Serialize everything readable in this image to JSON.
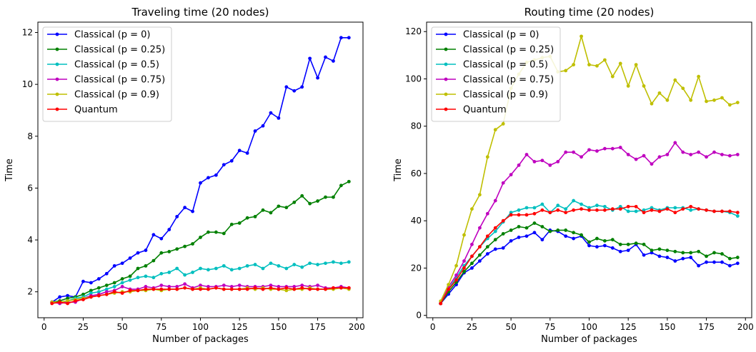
{
  "chart_data": [
    {
      "type": "line",
      "title": "Traveling time (20 nodes)",
      "xlabel": "Number of packages",
      "ylabel": "Time",
      "xlim": [
        -4,
        204
      ],
      "ylim": [
        1.0,
        12.4
      ],
      "xticks": [
        0,
        25,
        50,
        75,
        100,
        125,
        150,
        175,
        200
      ],
      "yticks": [
        2,
        4,
        6,
        8,
        10,
        12
      ],
      "grid": false,
      "legend_position": "top-left",
      "x": [
        5,
        10,
        15,
        20,
        25,
        30,
        35,
        40,
        45,
        50,
        55,
        60,
        65,
        70,
        75,
        80,
        85,
        90,
        95,
        100,
        105,
        110,
        115,
        120,
        125,
        130,
        135,
        140,
        145,
        150,
        155,
        160,
        165,
        170,
        175,
        180,
        185,
        190,
        195
      ],
      "series": [
        {
          "name": "Classical (p = 0)",
          "color": "#0000ff",
          "values": [
            1.6,
            1.8,
            1.85,
            1.8,
            2.4,
            2.35,
            2.5,
            2.7,
            3.0,
            3.1,
            3.3,
            3.5,
            3.6,
            4.2,
            4.05,
            4.4,
            4.9,
            5.25,
            5.1,
            6.2,
            6.4,
            6.5,
            6.9,
            7.05,
            7.45,
            7.35,
            8.2,
            8.4,
            8.9,
            8.7,
            9.9,
            9.75,
            9.9,
            11.0,
            10.25,
            11.05,
            10.9,
            11.8,
            11.8
          ]
        },
        {
          "name": "Classical (p = 0.25)",
          "color": "#008000",
          "values": [
            1.6,
            1.65,
            1.75,
            1.8,
            1.9,
            2.05,
            2.15,
            2.25,
            2.35,
            2.5,
            2.6,
            2.9,
            3.0,
            3.2,
            3.5,
            3.55,
            3.65,
            3.75,
            3.85,
            4.1,
            4.3,
            4.3,
            4.25,
            4.6,
            4.65,
            4.85,
            4.9,
            5.15,
            5.05,
            5.3,
            5.25,
            5.45,
            5.7,
            5.4,
            5.5,
            5.65,
            5.65,
            6.1,
            6.25
          ]
        },
        {
          "name": "Classical (p = 0.5)",
          "color": "#00bfbf",
          "values": [
            1.6,
            1.6,
            1.65,
            1.75,
            1.8,
            1.95,
            2.0,
            2.1,
            2.2,
            2.35,
            2.45,
            2.55,
            2.6,
            2.55,
            2.7,
            2.75,
            2.9,
            2.65,
            2.75,
            2.9,
            2.85,
            2.9,
            3.0,
            2.85,
            2.9,
            3.0,
            3.05,
            2.9,
            3.1,
            3.0,
            2.9,
            3.05,
            2.95,
            3.1,
            3.05,
            3.1,
            3.15,
            3.1,
            3.15
          ]
        },
        {
          "name": "Classical (p = 0.75)",
          "color": "#bf00bf",
          "values": [
            1.6,
            1.55,
            1.6,
            1.6,
            1.75,
            1.85,
            1.9,
            2.0,
            2.05,
            2.2,
            2.1,
            2.1,
            2.2,
            2.15,
            2.25,
            2.2,
            2.2,
            2.3,
            2.15,
            2.25,
            2.2,
            2.2,
            2.25,
            2.2,
            2.25,
            2.2,
            2.2,
            2.2,
            2.25,
            2.2,
            2.2,
            2.2,
            2.25,
            2.2,
            2.25,
            2.15,
            2.15,
            2.2,
            2.15
          ]
        },
        {
          "name": "Classical (p = 0.9)",
          "color": "#bfbf00",
          "values": [
            1.6,
            1.6,
            1.65,
            1.7,
            1.75,
            1.8,
            1.85,
            1.9,
            1.95,
            2.0,
            2.0,
            2.05,
            2.05,
            2.1,
            2.05,
            2.1,
            2.1,
            2.15,
            2.1,
            2.15,
            2.1,
            2.15,
            2.1,
            2.1,
            2.1,
            2.15,
            2.1,
            2.15,
            2.1,
            2.1,
            2.05,
            2.1,
            2.1,
            2.15,
            2.1,
            2.1,
            2.1,
            2.15,
            2.1
          ]
        },
        {
          "name": "Quantum",
          "color": "#ff0000",
          "values": [
            1.55,
            1.6,
            1.55,
            1.65,
            1.7,
            1.8,
            1.85,
            1.9,
            2.0,
            1.95,
            2.05,
            2.05,
            2.1,
            2.1,
            2.1,
            2.1,
            2.1,
            2.15,
            2.1,
            2.1,
            2.1,
            2.15,
            2.1,
            2.1,
            2.1,
            2.1,
            2.15,
            2.1,
            2.15,
            2.1,
            2.15,
            2.1,
            2.15,
            2.1,
            2.1,
            2.1,
            2.15,
            2.15,
            2.15
          ]
        }
      ]
    },
    {
      "type": "line",
      "title": "Routing time (20 nodes)",
      "xlabel": "Number of packages",
      "ylabel": "Time",
      "xlim": [
        -4,
        204
      ],
      "ylim": [
        -1,
        124
      ],
      "xticks": [
        0,
        25,
        50,
        75,
        100,
        125,
        150,
        175,
        200
      ],
      "yticks": [
        0,
        20,
        40,
        60,
        80,
        100,
        120
      ],
      "grid": false,
      "legend_position": "top-left",
      "x": [
        5,
        10,
        15,
        20,
        25,
        30,
        35,
        40,
        45,
        50,
        55,
        60,
        65,
        70,
        75,
        80,
        85,
        90,
        95,
        100,
        105,
        110,
        115,
        120,
        125,
        130,
        135,
        140,
        145,
        150,
        155,
        160,
        165,
        170,
        175,
        180,
        185,
        190,
        195
      ],
      "series": [
        {
          "name": "Classical (p = 0)",
          "color": "#0000ff",
          "values": [
            5,
            9,
            13,
            18,
            20,
            23,
            26,
            28,
            28.5,
            31.5,
            33,
            33.5,
            35,
            32,
            36,
            35.5,
            33.5,
            32.5,
            33.5,
            29.5,
            29,
            29.5,
            28.5,
            27,
            27.5,
            30,
            25.5,
            26.5,
            25,
            24.5,
            23,
            24,
            24.5,
            21,
            22.5,
            22.5,
            22.5,
            21,
            22
          ]
        },
        {
          "name": "Classical (p = 0.25)",
          "color": "#008000",
          "values": [
            5,
            10,
            14,
            18.5,
            22,
            25.5,
            29,
            32,
            34.5,
            36,
            37.5,
            37,
            39,
            37.5,
            35.5,
            36,
            36,
            35,
            34,
            31,
            32.5,
            31.5,
            32,
            30,
            30,
            30.5,
            30,
            27.5,
            28,
            27.5,
            27,
            26.5,
            26.5,
            27,
            25,
            26.5,
            26,
            24,
            24.5
          ]
        },
        {
          "name": "Classical (p = 0.5)",
          "color": "#00bfbf",
          "values": [
            5,
            11,
            16,
            21,
            25,
            29,
            32.5,
            35.5,
            39.5,
            43.5,
            44.5,
            45.5,
            45.5,
            47,
            43.5,
            46.5,
            45,
            48.5,
            47,
            45.5,
            46.5,
            46,
            44.5,
            46,
            44,
            44,
            44.5,
            45.5,
            44.5,
            45.5,
            45.5,
            45.5,
            44.5,
            45,
            44.5,
            44,
            44,
            43.5,
            42
          ]
        },
        {
          "name": "Classical (p = 0.75)",
          "color": "#bf00bf",
          "values": [
            5,
            12,
            17,
            23,
            30,
            37,
            43,
            48.5,
            56,
            59.5,
            63.5,
            68,
            65,
            65.5,
            63.5,
            65,
            69,
            69,
            67,
            70,
            69.5,
            70.5,
            70.5,
            71,
            68,
            66,
            67.5,
            64,
            67,
            68,
            73,
            69,
            68,
            69,
            67,
            69,
            68,
            67.5,
            68
          ]
        },
        {
          "name": "Classical (p = 0.9)",
          "color": "#bfbf00",
          "values": [
            6,
            13,
            21,
            34,
            45,
            51,
            67,
            78.5,
            81,
            96,
            102,
            107,
            108,
            109,
            109.5,
            103,
            103.5,
            106,
            118,
            106,
            105.5,
            108,
            101,
            106.5,
            97,
            106,
            97,
            89.5,
            94,
            91,
            99.5,
            96,
            91,
            101,
            90.5,
            91,
            92,
            89,
            90
          ]
        },
        {
          "name": "Quantum",
          "color": "#ff0000",
          "values": [
            5,
            11,
            15,
            20,
            25,
            29,
            33.5,
            37,
            40,
            42.5,
            42.5,
            42.5,
            43,
            44.5,
            43.5,
            44.5,
            43.5,
            44.5,
            45,
            44.5,
            44.5,
            44.5,
            45,
            45,
            46,
            46,
            43.5,
            44.5,
            44,
            45,
            43.5,
            45,
            46,
            45,
            44.5,
            44,
            44,
            44,
            43.5
          ]
        }
      ]
    }
  ]
}
